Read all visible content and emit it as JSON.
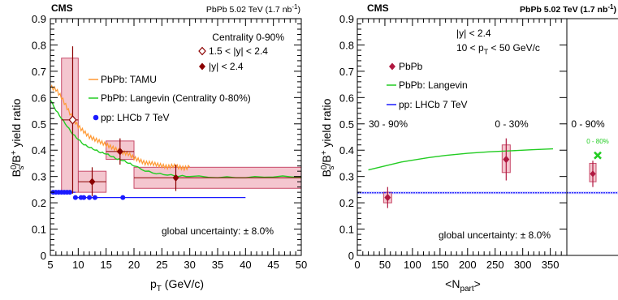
{
  "chart_data": [
    {
      "type": "scatter",
      "cms_label": "CMS",
      "energy_label": "PbPb 5.02 TeV (1.7 nb",
      "energy_sup": "-1",
      "energy_close": ")",
      "xlabel": "p",
      "xlabel_sub": "T",
      "xlabel_unit": " (GeV/c)",
      "ylabel_pre": "B",
      "ylabel_sub": "s",
      "ylabel_sup": "0",
      "ylabel_post": "/B",
      "ylabel_sup2": "+",
      "ylabel_tail": " yield ratio",
      "xlim": [
        5,
        50
      ],
      "ylim": [
        0,
        0.9
      ],
      "xticks": [
        "5",
        "10",
        "15",
        "20",
        "25",
        "30",
        "35",
        "40",
        "45",
        "50"
      ],
      "yticks": [
        "0",
        "0.1",
        "0.2",
        "0.3",
        "0.4",
        "0.5",
        "0.6",
        "0.7",
        "0.8",
        "0.9"
      ],
      "centrality_text": "Centrality 0-90%",
      "legend_open": "1.5 < |y| < 2.4",
      "legend_filled": "|y| < 2.4",
      "legend_tamu": "PbPb: TAMU",
      "legend_langevin": "PbPb: Langevin (Centrality 0-80%)",
      "legend_lhcb": "pp: LHCb 7 TeV",
      "global_uncertainty": "global uncertainty: ± 8.0%",
      "colors": {
        "data": "#8b0000",
        "box_fill": "#f4c6cf",
        "box_stroke": "#c84b6a",
        "tamu": "#ff9933",
        "langevin": "#22cc22",
        "lhcb": "#1a1aff"
      },
      "series": [
        {
          "name": "|y| < 2.4",
          "marker": "filled-diamond",
          "points": [
            {
              "x": 12.5,
              "xlow": 10,
              "xhigh": 15,
              "y": 0.28,
              "stat": 0.055,
              "syst_low": 0.24,
              "syst_high": 0.32
            },
            {
              "x": 17.5,
              "xlow": 15,
              "xhigh": 20,
              "y": 0.395,
              "stat": 0.05,
              "syst_low": 0.365,
              "syst_high": 0.435
            },
            {
              "x": 27.5,
              "xlow": 20,
              "xhigh": 50,
              "y": 0.295,
              "stat": 0.05,
              "syst_low": 0.255,
              "syst_high": 0.335
            }
          ]
        },
        {
          "name": "1.5 < |y| < 2.4",
          "marker": "open-diamond",
          "points": [
            {
              "x": 9,
              "xlow": 7,
              "xhigh": 10,
              "y": 0.515,
              "stat": 0.28,
              "syst_low": 0.24,
              "syst_high": 0.75
            }
          ]
        },
        {
          "name": "PbPb: TAMU",
          "line": true,
          "x": [
            5,
            6,
            7,
            8,
            9,
            10,
            11,
            12,
            13,
            14,
            15,
            16,
            17,
            18,
            19,
            20,
            21,
            22,
            23,
            24,
            25,
            26,
            27,
            28,
            29,
            30
          ],
          "y": [
            0.64,
            0.63,
            0.6,
            0.56,
            0.52,
            0.49,
            0.47,
            0.45,
            0.44,
            0.43,
            0.42,
            0.41,
            0.4,
            0.39,
            0.385,
            0.37,
            0.36,
            0.35,
            0.35,
            0.345,
            0.34,
            0.335,
            0.34,
            0.335,
            0.33,
            0.335
          ]
        },
        {
          "name": "PbPb: Langevin (Centrality 0-80%)",
          "line": true,
          "x": [
            5,
            6,
            7,
            8,
            9,
            10,
            11,
            12,
            13,
            14,
            15,
            16,
            17,
            18,
            19,
            20,
            22,
            24,
            26,
            28,
            30,
            35,
            40,
            45,
            50
          ],
          "y": [
            0.59,
            0.55,
            0.52,
            0.49,
            0.46,
            0.44,
            0.42,
            0.41,
            0.4,
            0.39,
            0.385,
            0.375,
            0.365,
            0.36,
            0.35,
            0.34,
            0.32,
            0.31,
            0.305,
            0.3,
            0.3,
            0.295,
            0.295,
            0.298,
            0.298
          ]
        },
        {
          "name": "pp: LHCb 7 TeV",
          "line": true,
          "x": [
            5,
            5.5,
            6,
            6.5,
            7,
            7.5,
            8,
            8.5,
            9,
            9.5,
            10,
            11,
            12,
            13,
            18,
            40
          ],
          "y": [
            0.24,
            0.24,
            0.24,
            0.24,
            0.24,
            0.24,
            0.24,
            0.24,
            0.24,
            0.22,
            0.22,
            0.22,
            0.22,
            0.22,
            0.22,
            0.22
          ],
          "points_x": [
            5.5,
            6,
            6.5,
            7,
            7.5,
            8,
            8.5,
            9.5,
            10.5,
            11,
            12,
            13,
            18
          ],
          "points_y": [
            0.24,
            0.24,
            0.24,
            0.24,
            0.24,
            0.24,
            0.24,
            0.22,
            0.22,
            0.22,
            0.22,
            0.22,
            0.22
          ]
        }
      ]
    },
    {
      "type": "scatter",
      "cms_label": "CMS",
      "energy_label": "PbPb 5.02 TeV (1.7 nb",
      "energy_sup": "-1",
      "energy_close": ")",
      "xlabel": "<N",
      "xlabel_sub": "part",
      "xlabel_unit": ">",
      "ylabel_pre": "B",
      "ylabel_sub": "s",
      "ylabel_sup": "0",
      "ylabel_post": "/B",
      "ylabel_sup2": "+",
      "ylabel_tail": " yield ratio",
      "xlim": [
        0,
        380
      ],
      "ylim": [
        0,
        0.9
      ],
      "xticks": [
        "0",
        "50",
        "100",
        "150",
        "200",
        "250",
        "300",
        "350"
      ],
      "yticks": [
        "0",
        "0.1",
        "0.2",
        "0.3",
        "0.4",
        "0.5",
        "0.6",
        "0.7",
        "0.8",
        "0.9"
      ],
      "rapidity_text": "|y| < 2.4",
      "pt_text_pre": "10 < p",
      "pt_text_sub": "T",
      "pt_text_post": " < 50 GeV/c",
      "legend_pbpb": "PbPb",
      "legend_langevin": "PbPb: Langevin",
      "legend_lhcb": "pp: LHCb 7 TeV",
      "cent_peripheral": "30 - 90%",
      "cent_central": "0 - 30%",
      "global_uncertainty": "global uncertainty: ± 8.0%",
      "series": [
        {
          "name": "PbPb",
          "marker": "filled-diamond",
          "points": [
            {
              "x": 55,
              "y": 0.22,
              "stat": 0.04,
              "syst_low": 0.2,
              "syst_high": 0.24
            },
            {
              "x": 270,
              "y": 0.365,
              "stat": 0.08,
              "syst_low": 0.315,
              "syst_high": 0.42
            }
          ]
        },
        {
          "name": "PbPb: Langevin",
          "line": true,
          "x": [
            20,
            40,
            60,
            80,
            100,
            130,
            160,
            200,
            240,
            280,
            320,
            355
          ],
          "y": [
            0.325,
            0.335,
            0.345,
            0.355,
            0.362,
            0.372,
            0.38,
            0.388,
            0.394,
            0.398,
            0.402,
            0.405
          ]
        },
        {
          "name": "pp: LHCb 7 TeV",
          "line": true,
          "band": [
            0.233,
            0.243
          ],
          "y_central": 0.238
        }
      ]
    },
    {
      "type": "scatter",
      "cent_label": "0 - 90%",
      "langevin_cent": "0 - 80%",
      "ylim": [
        0,
        0.9
      ],
      "series": [
        {
          "name": "integrated",
          "marker": "filled-diamond",
          "y": 0.31,
          "stat": 0.05,
          "syst_low": 0.28,
          "syst_high": 0.35
        },
        {
          "name": "Langevin integrated",
          "marker": "cross",
          "y": 0.38
        }
      ]
    }
  ]
}
